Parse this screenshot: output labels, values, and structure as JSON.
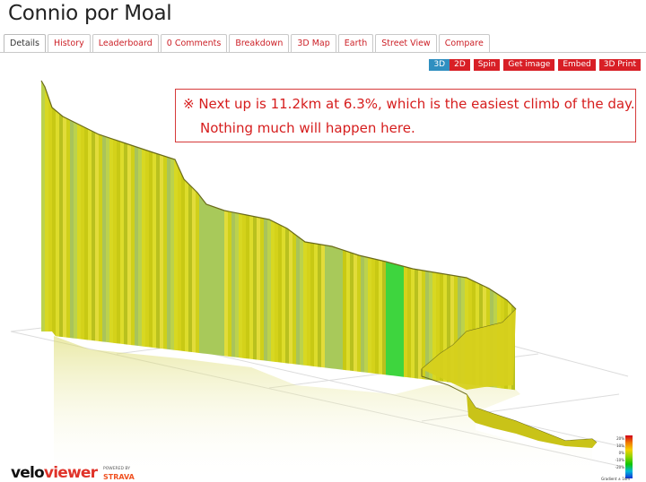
{
  "page": {
    "title": "Connio por Moal"
  },
  "tabs": [
    {
      "label": "Details",
      "active": true
    },
    {
      "label": "History",
      "active": false
    },
    {
      "label": "Leaderboard",
      "active": false
    },
    {
      "label": "0 Comments",
      "active": false
    },
    {
      "label": "Breakdown",
      "active": false
    },
    {
      "label": "3D Map",
      "active": false
    },
    {
      "label": "Earth",
      "active": false
    },
    {
      "label": "Street View",
      "active": false
    },
    {
      "label": "Compare",
      "active": false
    }
  ],
  "toolbar": {
    "btn_3d": "3D",
    "btn_2d": "2D",
    "btn_spin": "Spin",
    "btn_get_image": "Get image",
    "btn_embed": "Embed",
    "btn_3d_print": "3D Print"
  },
  "annotation": {
    "line1": "※ Next up is 11.2km at 6.3%, which is the easiest climb of the day.",
    "line2": "Nothing much will happen here."
  },
  "branding": {
    "logo_part1": "velo",
    "logo_part2": "viewer",
    "powered_by": "POWERED BY",
    "strava": "STRAVA"
  },
  "legend": {
    "labels": [
      "20%",
      "10%",
      "0%",
      "-10%",
      "-20%"
    ],
    "footer": "Gradient ± 1km"
  },
  "colors": {
    "accent_red": "#d81f26",
    "button_blue": "#2f8fc0",
    "profile_yellow": "#d4d21a",
    "profile_green": "#3ed53e"
  }
}
